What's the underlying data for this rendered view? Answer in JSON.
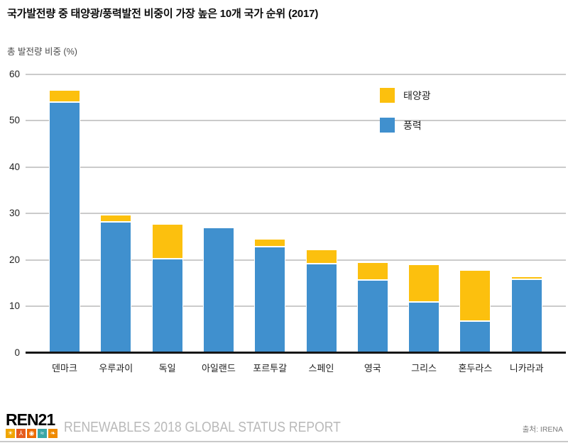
{
  "title": "국가발전량 중 태양광/풍력발전 비중이 가장 높은 10개 국가 순위 (2017)",
  "ylabel": "총 발전량 비중 (%)",
  "legend": {
    "solar_label": "태양광",
    "wind_label": "풍력"
  },
  "source": "출처: IRENA",
  "footer": {
    "logo_text": "REN21",
    "report_text": "RENEWABLES 2018 GLOBAL STATUS REPORT"
  },
  "colors": {
    "solar": "#FCC00E",
    "wind": "#4090CE",
    "grid": "#cbcbcb",
    "axis": "#161616"
  },
  "logo_tiles": [
    {
      "name": "sun-icon",
      "color": "#F0A500",
      "glyph": "☀"
    },
    {
      "name": "wind-turbine-icon",
      "color": "#E55C1E",
      "glyph": "⅄"
    },
    {
      "name": "power-icon",
      "color": "#ED6A00",
      "glyph": "◉"
    },
    {
      "name": "waves-icon",
      "color": "#3AA6A6",
      "glyph": "≈"
    },
    {
      "name": "leaf-icon",
      "color": "#F08A00",
      "glyph": "❧"
    }
  ],
  "chart_data": {
    "type": "bar",
    "stacked": true,
    "title": "국가발전량 중 태양광/풍력발전 비중이 가장 높은 10개 국가 순위 (2017)",
    "xlabel": "",
    "ylabel": "총 발전량 비중 (%)",
    "categories": [
      "덴마크",
      "우루과이",
      "독일",
      "아일랜드",
      "포르투갈",
      "스페인",
      "영국",
      "그리스",
      "혼두라스",
      "니카라과"
    ],
    "series": [
      {
        "name": "태양광",
        "color": "#FCC00E",
        "values": [
          2.6,
          1.5,
          7.4,
          0,
          1.7,
          3.1,
          3.9,
          8.1,
          11.0,
          0.5
        ]
      },
      {
        "name": "풍력",
        "color": "#4090CE",
        "values": [
          53.9,
          28.1,
          20.2,
          26.9,
          22.8,
          19.1,
          15.5,
          10.8,
          6.7,
          15.8
        ]
      }
    ],
    "totals": [
      56.5,
      29.6,
      27.6,
      26.9,
      24.5,
      22.2,
      19.4,
      18.9,
      17.7,
      16.3
    ],
    "ylim": [
      0,
      60
    ],
    "yticks": [
      0,
      10,
      20,
      30,
      40,
      50,
      60
    ],
    "grid": true,
    "legend_position": "upper right"
  }
}
